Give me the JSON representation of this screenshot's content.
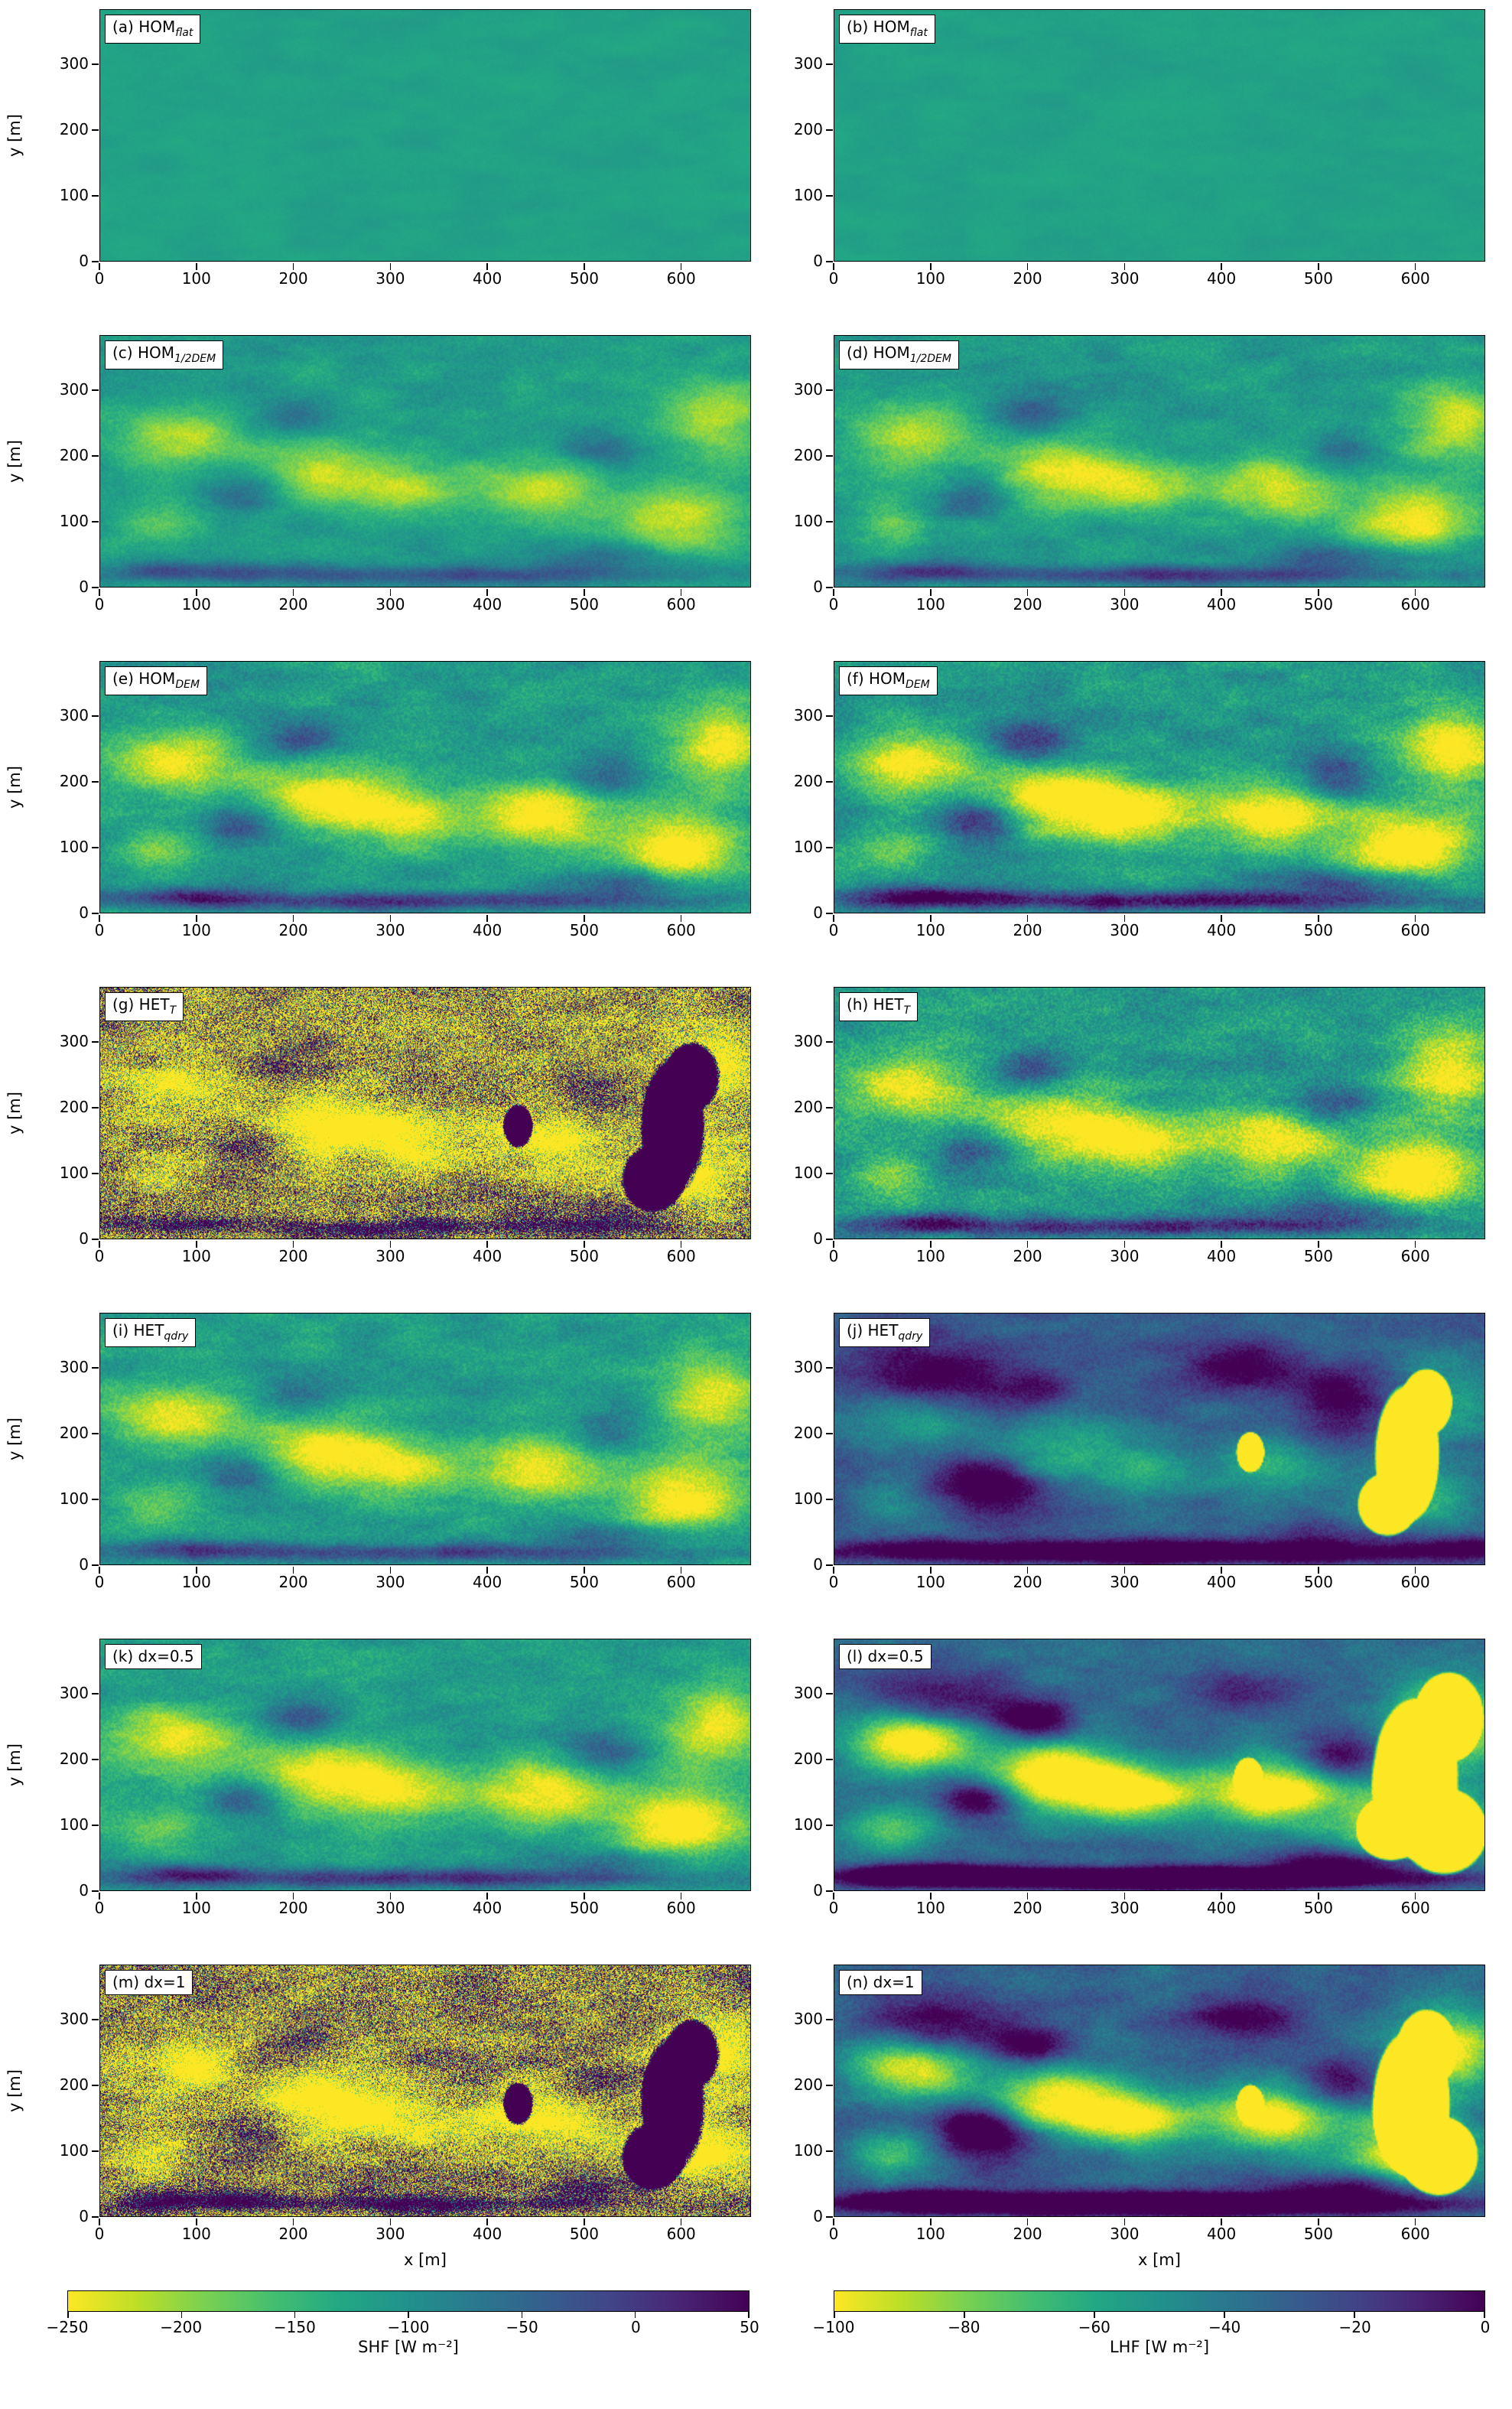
{
  "chart_data": {
    "type": "heatmap",
    "description": "Instantaneous surface sensible (SHF) and latent (LHF) heat flux fields for seven simulations, viridis-reversed colormap",
    "axes": {
      "xlabel": "x [m]",
      "ylabel": "y [m]",
      "x_ticks": [
        0,
        100,
        200,
        300,
        400,
        500,
        600
      ],
      "y_ticks": [
        0,
        100,
        200,
        300
      ],
      "x_range": [
        0,
        672
      ],
      "y_range": [
        0,
        384
      ]
    },
    "colormap": {
      "name": "viridis reversed (yellow = strongly negative flux, dark purple = near zero / positive)",
      "stops": [
        "#fde725",
        "#bddf26",
        "#7ad151",
        "#44bf70",
        "#22a884",
        "#21918c",
        "#2a788e",
        "#355f8d",
        "#414487",
        "#482475",
        "#440154"
      ]
    },
    "colorbars": [
      {
        "label": "SHF [W m⁻²]",
        "range": [
          -250,
          50
        ],
        "tick_values": [
          -250,
          -200,
          -150,
          -100,
          -50,
          0,
          50
        ],
        "ticks": [
          "−250",
          "−200",
          "−150",
          "−100",
          "−50",
          "0",
          "50"
        ]
      },
      {
        "label": "LHF [W m⁻²]",
        "range": [
          -100,
          0
        ],
        "tick_values": [
          -100,
          -80,
          -60,
          -40,
          -20,
          0
        ],
        "ticks": [
          "−100",
          "−80",
          "−60",
          "−40",
          "−20",
          "0"
        ]
      }
    ],
    "shared_blobs": [
      [
        80,
        230,
        78,
        58,
        0.42
      ],
      [
        230,
        175,
        85,
        58,
        0.46
      ],
      [
        315,
        148,
        70,
        50,
        0.38
      ],
      [
        455,
        150,
        80,
        55,
        0.46
      ],
      [
        600,
        100,
        78,
        68,
        0.5
      ],
      [
        638,
        255,
        62,
        75,
        0.42
      ],
      [
        60,
        95,
        52,
        42,
        0.22
      ],
      [
        148,
        140,
        48,
        36,
        -0.3
      ],
      [
        205,
        262,
        48,
        36,
        -0.26
      ],
      [
        520,
        205,
        48,
        40,
        -0.24
      ],
      [
        340,
        18,
        330,
        17,
        -0.38
      ],
      [
        545,
        45,
        110,
        24,
        -0.26
      ],
      [
        90,
        25,
        90,
        18,
        -0.3
      ]
    ],
    "panels": [
      {
        "key": "a",
        "label_prefix": "(a) HOM",
        "label_sub": "flat",
        "quantity": "SHF",
        "field": {
          "seed": 11,
          "base": 0.57,
          "noise": 0.05,
          "grain": 0.012,
          "gain": 1,
          "blobScale": 0,
          "extra": []
        }
      },
      {
        "key": "b",
        "label_prefix": "(b) HOM",
        "label_sub": "flat",
        "quantity": "LHF",
        "field": {
          "seed": 23,
          "base": 0.57,
          "noise": 0.05,
          "grain": 0.012,
          "gain": 1,
          "blobScale": 0,
          "extra": []
        }
      },
      {
        "key": "c",
        "label_prefix": "(c) HOM",
        "label_sub": "1/2DEM",
        "quantity": "SHF",
        "field": {
          "seed": 31,
          "base": 0.55,
          "noise": 0.11,
          "grain": 0.05,
          "gain": 1,
          "blobScale": 0.75,
          "extra": []
        }
      },
      {
        "key": "d",
        "label_prefix": "(d) HOM",
        "label_sub": "1/2DEM",
        "quantity": "LHF",
        "field": {
          "seed": 41,
          "base": 0.53,
          "noise": 0.12,
          "grain": 0.055,
          "gain": 1.05,
          "blobScale": 0.9,
          "extra": []
        }
      },
      {
        "key": "e",
        "label_prefix": "(e) HOM",
        "label_sub": "DEM",
        "quantity": "SHF",
        "field": {
          "seed": 51,
          "base": 0.54,
          "noise": 0.12,
          "grain": 0.07,
          "gain": 1.1,
          "blobScale": 1,
          "extra": []
        }
      },
      {
        "key": "f",
        "label_prefix": "(f) HOM",
        "label_sub": "DEM",
        "quantity": "LHF",
        "field": {
          "seed": 61,
          "base": 0.52,
          "noise": 0.13,
          "grain": 0.075,
          "gain": 1.15,
          "blobScale": 1.15,
          "extra": []
        }
      },
      {
        "key": "g",
        "label_prefix": "(g) HET",
        "label_sub": "T",
        "quantity": "SHF",
        "field": {
          "seed": 71,
          "base": 0.55,
          "noise": 0.3,
          "grain": 0.45,
          "gain": 3.2,
          "blobScale": 1.1,
          "res": [
            852,
            330
          ],
          "extra": [
            [
              592,
              170,
              30,
              95,
              -3
            ],
            [
              572,
              92,
              30,
              46,
              -3
            ],
            [
              612,
              248,
              26,
              48,
              -3
            ],
            [
              432,
              172,
              14,
              30,
              -3
            ]
          ]
        }
      },
      {
        "key": "h",
        "label_prefix": "(h) HET",
        "label_sub": "T",
        "quantity": "LHF",
        "field": {
          "seed": 81,
          "base": 0.53,
          "noise": 0.13,
          "grain": 0.09,
          "gain": 1.15,
          "blobScale": 1,
          "extra": []
        }
      },
      {
        "key": "i",
        "label_prefix": "(i) HET",
        "label_sub": "qdry",
        "quantity": "SHF",
        "field": {
          "seed": 91,
          "base": 0.55,
          "noise": 0.12,
          "grain": 0.07,
          "gain": 1.05,
          "blobScale": 0.95,
          "extra": []
        }
      },
      {
        "key": "j",
        "label_prefix": "(j) HET",
        "label_sub": "qdry",
        "quantity": "LHF",
        "field": {
          "seed": 101,
          "base": 0.34,
          "noise": 0.1,
          "grain": 0.05,
          "gain": 1.25,
          "blobScale": 0.55,
          "extra": [
            [
              592,
              170,
              30,
              95,
              3
            ],
            [
              572,
              92,
              28,
              44,
              3
            ],
            [
              612,
              248,
              24,
              46,
              3
            ],
            [
              430,
              172,
              13,
              28,
              3
            ],
            [
              105,
              290,
              95,
              60,
              -0.35
            ],
            [
              165,
              110,
              62,
              48,
              -0.3
            ],
            [
              420,
              305,
              75,
              45,
              -0.3
            ],
            [
              520,
              262,
              55,
              42,
              -0.3
            ],
            [
              340,
              20,
              330,
              20,
              -0.35
            ],
            [
              655,
              25,
              55,
              22,
              -0.25
            ]
          ]
        }
      },
      {
        "key": "k",
        "label_prefix": "(k) dx=0.5",
        "label_sub": "",
        "quantity": "SHF",
        "field": {
          "seed": 111,
          "base": 0.55,
          "noise": 0.12,
          "grain": 0.065,
          "gain": 1.05,
          "blobScale": 1,
          "extra": []
        }
      },
      {
        "key": "l",
        "label_prefix": "(l) dx=0.5",
        "label_sub": "",
        "quantity": "LHF",
        "field": {
          "seed": 121,
          "base": 0.38,
          "noise": 0.1,
          "grain": 0.05,
          "gain": 1.2,
          "blobScale": 1.5,
          "extra": [
            [
              600,
              170,
              40,
              110,
              3
            ],
            [
              630,
              90,
              40,
              60,
              3
            ],
            [
              575,
              95,
              32,
              45,
              3
            ],
            [
              635,
              265,
              32,
              62,
              3
            ],
            [
              428,
              170,
              14,
              30,
              3
            ],
            [
              105,
              290,
              90,
              55,
              -0.3
            ],
            [
              420,
              305,
              70,
              42,
              -0.25
            ],
            [
              340,
              20,
              330,
              20,
              -0.3
            ]
          ]
        }
      },
      {
        "key": "m",
        "label_prefix": "(m) dx=1",
        "label_sub": "",
        "quantity": "SHF",
        "field": {
          "seed": 131,
          "base": 0.54,
          "noise": 0.3,
          "grain": 0.45,
          "gain": 3.2,
          "blobScale": 1.15,
          "res": [
            852,
            330
          ],
          "extra": [
            [
              592,
              170,
              30,
              95,
              -3
            ],
            [
              572,
              92,
              30,
              46,
              -3
            ],
            [
              612,
              248,
              26,
              48,
              -3
            ],
            [
              432,
              172,
              14,
              30,
              -3
            ]
          ]
        }
      },
      {
        "key": "n",
        "label_prefix": "(n) dx=1",
        "label_sub": "",
        "quantity": "LHF",
        "field": {
          "seed": 141,
          "base": 0.36,
          "noise": 0.1,
          "grain": 0.05,
          "gain": 1.25,
          "blobScale": 1.3,
          "extra": [
            [
              596,
              172,
              36,
              100,
              3
            ],
            [
              625,
              92,
              36,
              55,
              3
            ],
            [
              612,
              255,
              28,
              55,
              3
            ],
            [
              430,
              170,
              13,
              28,
              3
            ],
            [
              105,
              290,
              92,
              58,
              -0.32
            ],
            [
              165,
              110,
              60,
              46,
              -0.28
            ],
            [
              420,
              305,
              72,
              44,
              -0.28
            ],
            [
              340,
              20,
              330,
              20,
              -0.32
            ]
          ]
        }
      }
    ]
  }
}
